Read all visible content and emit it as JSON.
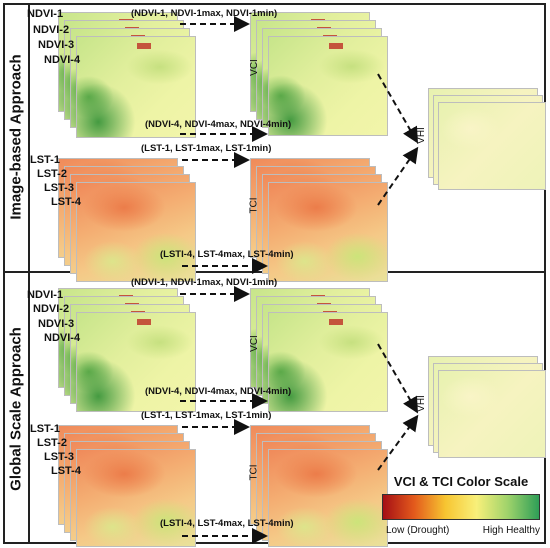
{
  "sections": [
    {
      "title": "Image-based Approach",
      "ndvi_labels": [
        "NDVI-1",
        "NDVI-2",
        "NDVI-3",
        "NDVI-4"
      ],
      "lst_labels": [
        "LST-1",
        "LST-2",
        "LST-3",
        "LST-4"
      ],
      "ndvi_top_arrow": "(NDVI-1, NDVI-1max, NDVI-1min)",
      "ndvi_bottom_arrow": "(NDVI-4, NDVI-4max, NDVI-4min)",
      "lst_top_arrow": "(LST-1, LST-1max, LST-1min)",
      "lst_bottom_arrow": "(LSTI-4, LST-4max, LST-4min)",
      "vci": "VCI",
      "tci": "TCI",
      "vhi": "VHI"
    },
    {
      "title": "Global Scale Approach",
      "ndvi_labels": [
        "NDVI-1",
        "NDVI-2",
        "NDVI-3",
        "NDVI-4"
      ],
      "lst_labels": [
        "LST-1",
        "LST-2",
        "LST-3",
        "LST-4"
      ],
      "ndvi_top_arrow": "(NDVI-1, NDVI-1max, NDVI-1min)",
      "ndvi_bottom_arrow": "(NDVI-4, NDVI-4max, NDVI-4min)",
      "lst_top_arrow": "(LST-1, LST-1max, LST-1min)",
      "lst_bottom_arrow": "(LSTI-4, LST-4max, LST-4min)",
      "vci": "VCI",
      "tci": "TCI",
      "vhi": "VHI"
    }
  ],
  "legend": {
    "title": "VCI & TCI Color Scale",
    "low": "Low (Drought)",
    "high": "High Healthy",
    "colors": [
      "#a50f15",
      "#e35a1c",
      "#f7c531",
      "#f8f07a",
      "#9fd36b",
      "#2e9e57"
    ]
  }
}
